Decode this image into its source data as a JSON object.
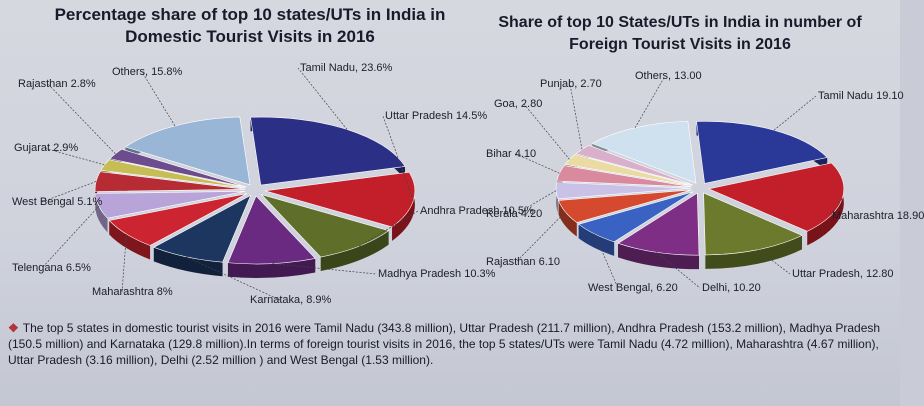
{
  "chart_data": [
    {
      "type": "pie",
      "title": "Percentage share of top 10 states/UTs in India in Domestic Tourist Visits in 2016",
      "unit": "%",
      "slices": [
        {
          "label": "Tamil Nadu",
          "value": 23.6,
          "display": "Tamil Nadu, 23.6%",
          "color": "#2c2f86"
        },
        {
          "label": "Uttar Pradesh",
          "value": 14.5,
          "display": "Uttar Pradesh 14.5%",
          "color": "#c21f2a"
        },
        {
          "label": "Andhra Pradesh",
          "value": 10.5,
          "display": "Andhra Pradesh 10.5%",
          "color": "#5f6f2a"
        },
        {
          "label": "Madhya Pradesh",
          "value": 10.3,
          "display": "Madhya Pradesh 10.3%",
          "color": "#6a2a82"
        },
        {
          "label": "Karnataka",
          "value": 8.9,
          "display": "Karnataka, 8.9%",
          "color": "#1c3660"
        },
        {
          "label": "Maharashtra",
          "value": 8,
          "display": "Maharashtra 8%",
          "color": "#cc2430"
        },
        {
          "label": "Telengana",
          "value": 6.5,
          "display": "Telengana 6.5%",
          "color": "#b8a4d8"
        },
        {
          "label": "West Bengal",
          "value": 5.1,
          "display": "West Bengal 5.1%",
          "color": "#b72b34"
        },
        {
          "label": "Gujarat",
          "value": 2.9,
          "display": "Gujarat 2.9%",
          "color": "#c7bd55"
        },
        {
          "label": "Rajasthan",
          "value": 2.8,
          "display": "Rajasthan 2.8%",
          "color": "#6c4c8c"
        },
        {
          "label": "Others",
          "value": 15.8,
          "display": "Others, 15.8%",
          "color": "#9ab6d6"
        }
      ]
    },
    {
      "type": "pie",
      "title": "Share of top 10 States/UTs in India in number of Foreign Tourist Visits in 2016",
      "unit": "%",
      "slices": [
        {
          "label": "Tamil Nadu",
          "value": 19.1,
          "display": "Tamil Nadu 19.10",
          "color": "#2a3898"
        },
        {
          "label": "Maharashtra",
          "value": 18.9,
          "display": "Maharashtra 18.90",
          "color": "#c21f2a"
        },
        {
          "label": "Uttar Pradesh",
          "value": 12.8,
          "display": "Uttar Pradesh, 12.80",
          "color": "#6b7a2c"
        },
        {
          "label": "Delhi",
          "value": 10.2,
          "display": "Delhi, 10.20",
          "color": "#7e2e84"
        },
        {
          "label": "West Bengal",
          "value": 6.2,
          "display": "West Bengal, 6.20",
          "color": "#3a62c2"
        },
        {
          "label": "Rajasthan",
          "value": 6.1,
          "display": "Rajasthan 6.10",
          "color": "#d54a2e"
        },
        {
          "label": "Kerala",
          "value": 4.2,
          "display": "Kerala 4.20",
          "color": "#c9c2e6"
        },
        {
          "label": "Bihar",
          "value": 4.1,
          "display": "Bihar 4.10",
          "color": "#d98a9e"
        },
        {
          "label": "Goa",
          "value": 2.8,
          "display": "Goa, 2.80",
          "color": "#eadba2"
        },
        {
          "label": "Punjab",
          "value": 2.7,
          "display": "Punjab, 2.70",
          "color": "#d9b0cc"
        },
        {
          "label": "Others",
          "value": 13.0,
          "display": "Others, 13.00",
          "color": "#cfe0ee"
        }
      ]
    }
  ],
  "note": {
    "text": "The top 5 states in domestic tourist visits in 2016 were Tamil Nadu (343.8 million), Uttar Pradesh (211.7 million), Andhra Pradesh (153.2 million), Madhya Pradesh (150.5 million) and Karnataka (129.8 million).In terms of foreign tourist visits in 2016, the top 5 states/UTs were Tamil Nadu (4.72 million), Maharashtra (4.67 million), Uttar Pradesh (3.16 million), Delhi (2.52 million ) and West Bengal (1.53 million)."
  }
}
